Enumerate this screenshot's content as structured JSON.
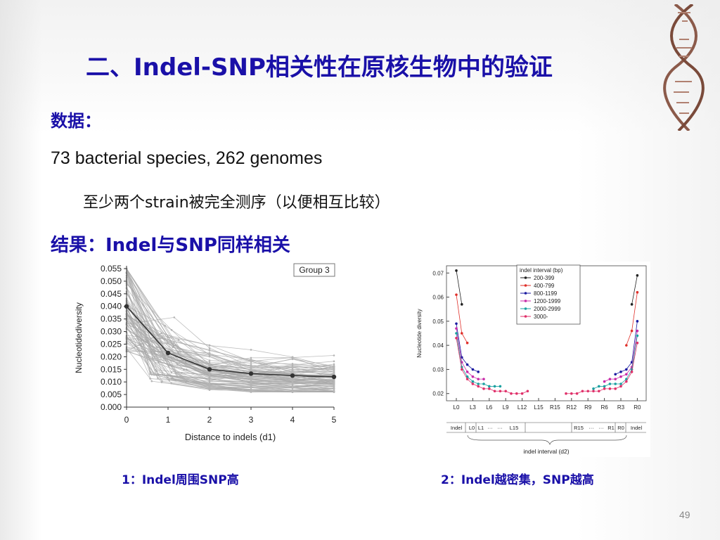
{
  "slide": {
    "title": "二、Indel-SNP相关性在原核生物中的验证",
    "data_label": "数据：",
    "species_line": "73 bacterial species, 262 genomes",
    "sub_line": "至少两个strain被完全测序（以便相互比较）",
    "result_label": "结果：Indel与SNP同样相关",
    "caption1": "1：Indel周围SNP高",
    "caption2": "2：Indel越密集，SNP越高",
    "page_number": "49"
  },
  "colors": {
    "heading": "#1a10a8",
    "gray_lines": "#a8a8a8",
    "mean_line": "#333333"
  },
  "chart_data": [
    {
      "type": "line",
      "title": "",
      "legend_box": "Group 3",
      "xlabel": "Distance to indels (d1)",
      "ylabel": "Nucleotidediversity",
      "x": [
        0,
        1,
        2,
        3,
        4,
        5
      ],
      "xticks": [
        "0",
        "1",
        "2",
        "3",
        "4",
        "5"
      ],
      "yticks": [
        "0.000",
        "0.005",
        "0.010",
        "0.015",
        "0.020",
        "0.025",
        "0.030",
        "0.035",
        "0.040",
        "0.045",
        "0.050",
        "0.055"
      ],
      "ylim": [
        0,
        0.055
      ],
      "series": [
        {
          "values": [
            0.04,
            0.0215,
            0.015,
            0.0133,
            0.0125,
            0.012
          ]
        }
      ],
      "grid": false
    },
    {
      "type": "line",
      "title": "",
      "xlabel": "indel interval (d2)",
      "ylabel": "Nucleotide diversity",
      "legend_title": "indel interval (bp)",
      "legend_position": "top-center",
      "xticks": [
        "L0",
        "L3",
        "L6",
        "L9",
        "L12",
        "L15",
        "R15",
        "R12",
        "R9",
        "R6",
        "R3",
        "R0"
      ],
      "yticks": [
        "0.02",
        "0.03",
        "0.04",
        "0.05",
        "0.06",
        "0.07"
      ],
      "ylim": [
        0.017,
        0.073
      ],
      "schematic_labels": [
        "Indel",
        "L0",
        "L1",
        "···",
        "···",
        "L15",
        "R15",
        "···",
        "···",
        "R1",
        "R0",
        "Indel"
      ],
      "series": [
        {
          "name": "200-399",
          "color": "#222222",
          "left": [
            0.071,
            0.057
          ],
          "right": [
            0.057,
            0.069
          ]
        },
        {
          "name": "400-799",
          "color": "#e0302a",
          "left": [
            0.061,
            0.045,
            0.041
          ],
          "right": [
            0.04,
            0.046,
            0.062
          ]
        },
        {
          "name": "800-1199",
          "color": "#1a1aa0",
          "left": [
            0.049,
            0.035,
            0.032,
            0.03,
            0.029
          ],
          "right": [
            0.028,
            0.029,
            0.03,
            0.033,
            0.05
          ]
        },
        {
          "name": "1200-1999",
          "color": "#c82aa8",
          "left": [
            0.047,
            0.033,
            0.029,
            0.027,
            0.026,
            0.026
          ],
          "right": [
            0.025,
            0.026,
            0.026,
            0.027,
            0.028,
            0.031,
            0.046
          ]
        },
        {
          "name": "2000-2999",
          "color": "#1aa0a0",
          "left": [
            0.045,
            0.031,
            0.027,
            0.025,
            0.024,
            0.024,
            0.023,
            0.023,
            0.023
          ],
          "right": [
            0.022,
            0.023,
            0.023,
            0.024,
            0.024,
            0.024,
            0.026,
            0.03,
            0.044
          ]
        },
        {
          "name": "3000-",
          "color": "#e0306a",
          "left": [
            0.043,
            0.03,
            0.026,
            0.024,
            0.023,
            0.022,
            0.022,
            0.021,
            0.021,
            0.021,
            0.02,
            0.02,
            0.02,
            0.021
          ],
          "right": [
            0.02,
            0.02,
            0.02,
            0.021,
            0.021,
            0.021,
            0.021,
            0.022,
            0.022,
            0.022,
            0.023,
            0.025,
            0.029,
            0.041
          ]
        }
      ]
    }
  ]
}
